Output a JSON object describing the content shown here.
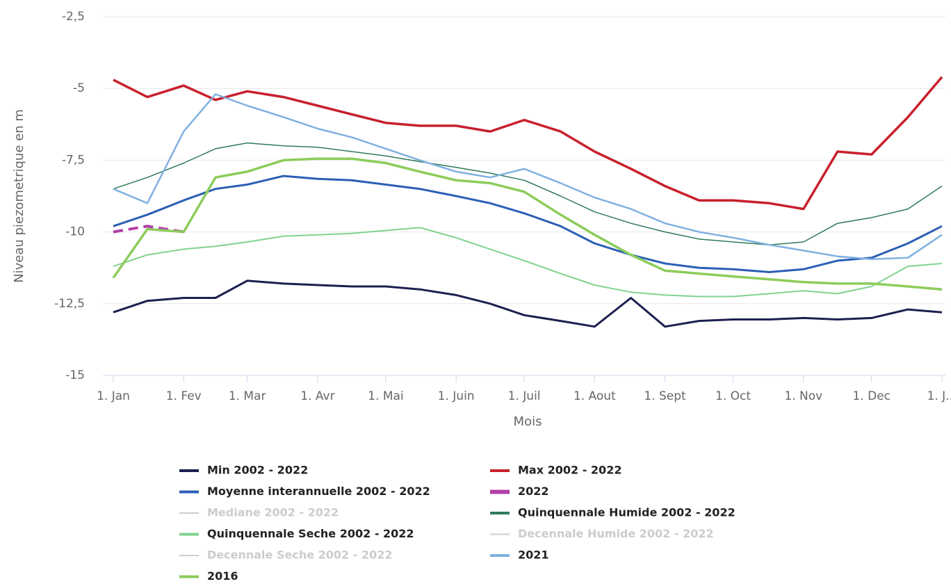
{
  "chart_data": {
    "type": "line",
    "y_label": "Niveau piezometrique en m",
    "x_label": "Mois",
    "xlim": [
      0,
      365
    ],
    "xticks": [
      {
        "value": 0,
        "label": "1. Jan"
      },
      {
        "value": 31,
        "label": "1. Fev"
      },
      {
        "value": 59,
        "label": "1. Mar"
      },
      {
        "value": 90,
        "label": "1. Avr"
      },
      {
        "value": 120,
        "label": "1. Mai"
      },
      {
        "value": 151,
        "label": "1. Juin"
      },
      {
        "value": 181,
        "label": "1. Juil"
      },
      {
        "value": 212,
        "label": "1. Aout"
      },
      {
        "value": 243,
        "label": "1. Sept"
      },
      {
        "value": 273,
        "label": "1. Oct"
      },
      {
        "value": 304,
        "label": "1. Nov"
      },
      {
        "value": 334,
        "label": "1. Dec"
      },
      {
        "value": 365,
        "label": "1. J..."
      }
    ],
    "ylim": [
      -15,
      -2.5
    ],
    "yticks": [
      {
        "value": -2.5,
        "label": "-2,5"
      },
      -5,
      {
        "value": -7.5,
        "label": "-7,5"
      },
      -10,
      {
        "value": -12.5,
        "label": "-12,5"
      },
      -15
    ],
    "grid": true,
    "x": [
      0,
      15,
      31,
      45,
      59,
      75,
      90,
      105,
      120,
      135,
      151,
      166,
      181,
      197,
      212,
      228,
      243,
      258,
      273,
      289,
      304,
      319,
      334,
      350,
      365
    ],
    "series": [
      {
        "name": "Min 2002 - 2022",
        "color": "#1c1f4f",
        "width": 3,
        "visible": true,
        "values": [
          -12.8,
          -12.4,
          -12.3,
          -12.3,
          -11.7,
          -11.8,
          -11.85,
          -11.9,
          -11.9,
          -12.0,
          -12.2,
          -12.5,
          -12.9,
          -13.1,
          -13.3,
          -12.3,
          -13.3,
          -13.1,
          -13.05,
          -13.05,
          -13.0,
          -13.05,
          -13.0,
          -12.7,
          -12.8
        ]
      },
      {
        "name": "Max 2002 - 2022",
        "color": "#c8202c",
        "width": 3.5,
        "visible": true,
        "values": [
          -4.7,
          -5.3,
          -4.9,
          -5.4,
          -5.1,
          -5.3,
          -5.6,
          -5.9,
          -6.2,
          -6.3,
          -6.3,
          -6.5,
          -6.1,
          -6.5,
          -7.2,
          -7.8,
          -8.4,
          -8.9,
          -8.9,
          -9.0,
          -9.2,
          -7.2,
          -7.3,
          -6.0,
          -4.6
        ]
      },
      {
        "name": "Moyenne interannuelle 2002 - 2022",
        "color": "#2b5fb5",
        "width": 3,
        "visible": true,
        "values": [
          -9.8,
          -9.4,
          -8.9,
          -8.5,
          -8.35,
          -8.05,
          -8.15,
          -8.2,
          -8.35,
          -8.5,
          -8.75,
          -9.0,
          -9.35,
          -9.8,
          -10.4,
          -10.8,
          -11.1,
          -11.25,
          -11.3,
          -11.4,
          -11.3,
          -11.0,
          -10.9,
          -10.4,
          -9.8
        ]
      },
      {
        "name": "2022",
        "color": "#b040a8",
        "width": 4,
        "dashed": true,
        "visible": true,
        "values": [
          -10.0,
          -9.8,
          -10.0,
          null,
          null,
          null,
          null,
          null,
          null,
          null,
          null,
          null,
          null,
          null,
          null,
          null,
          null,
          null,
          null,
          null,
          null,
          null,
          null,
          null,
          null
        ]
      },
      {
        "name": "Mediane 2002 - 2022",
        "color": "#a8c8e8",
        "visible": false
      },
      {
        "name": "Quinquennale Humide 2002 - 2022",
        "color": "#2f7a5a",
        "width": 1.5,
        "visible": true,
        "values": [
          -8.5,
          -8.1,
          -7.6,
          -7.1,
          -6.9,
          -7.0,
          -7.05,
          -7.2,
          -7.35,
          -7.55,
          -7.75,
          -7.95,
          -8.2,
          -8.75,
          -9.3,
          -9.7,
          -10.0,
          -10.25,
          -10.35,
          -10.45,
          -10.35,
          -9.7,
          -9.5,
          -9.2,
          -8.4
        ]
      },
      {
        "name": "Quinquennale Seche 2002 - 2022",
        "color": "#7fd38e",
        "width": 2,
        "visible": true,
        "values": [
          -11.2,
          -10.8,
          -10.6,
          -10.5,
          -10.35,
          -10.15,
          -10.1,
          -10.05,
          -9.95,
          -9.85,
          -10.2,
          -10.6,
          -11.0,
          -11.45,
          -11.85,
          -12.1,
          -12.2,
          -12.25,
          -12.25,
          -12.15,
          -12.05,
          -12.15,
          -11.9,
          -11.2,
          -11.1
        ]
      },
      {
        "name": "Decennale Humide 2002 - 2022",
        "color": "#cccccc",
        "visible": false
      },
      {
        "name": "Decennale Seche 2002 - 2022",
        "color": "#dddddd",
        "visible": false
      },
      {
        "name": "2021",
        "color": "#7fb0e0",
        "width": 2.5,
        "visible": true,
        "values": [
          -8.5,
          -9.0,
          -6.5,
          -5.2,
          -5.6,
          -6.0,
          -6.4,
          -6.7,
          -7.1,
          -7.5,
          -7.9,
          -8.1,
          -7.8,
          -8.3,
          -8.8,
          -9.2,
          -9.7,
          -10.0,
          -10.2,
          -10.45,
          -10.65,
          -10.85,
          -10.95,
          -10.9,
          -10.1
        ]
      },
      {
        "name": "2016",
        "color": "#8ccc5a",
        "width": 3.5,
        "visible": true,
        "values": [
          -11.6,
          -9.9,
          -10.0,
          -8.1,
          -7.9,
          -7.5,
          -7.45,
          -7.45,
          -7.6,
          -7.9,
          -8.2,
          -8.3,
          -8.6,
          -9.4,
          -10.1,
          -10.8,
          -11.35,
          -11.45,
          -11.55,
          -11.65,
          -11.75,
          -11.8,
          -11.8,
          -11.9,
          -12.0
        ]
      }
    ]
  }
}
